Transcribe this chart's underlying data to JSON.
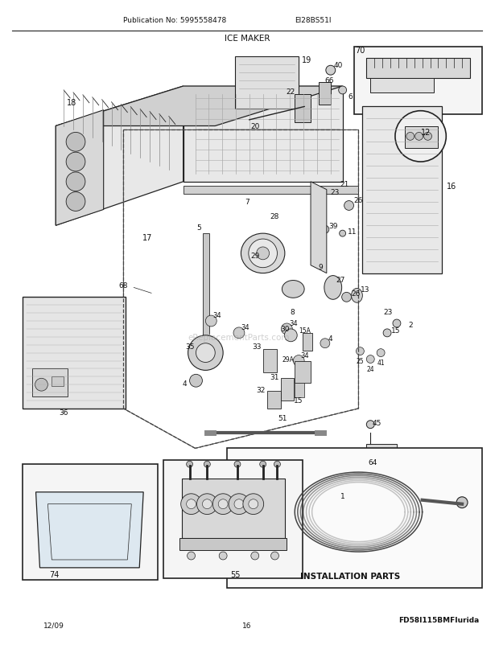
{
  "title": "ICE MAKER",
  "pub_no": "Publication No: 5995558478",
  "model": "EI28BS51I",
  "date": "12/09",
  "page": "16",
  "footer_code": "FD58I115BMFIurida",
  "install_parts_label": "INSTALLATION PARTS",
  "bg_color": "#ffffff",
  "lc": "#222222",
  "tc": "#111111",
  "gray1": "#c8c8c8",
  "gray2": "#e0e0e0",
  "gray3": "#f0f0f0"
}
